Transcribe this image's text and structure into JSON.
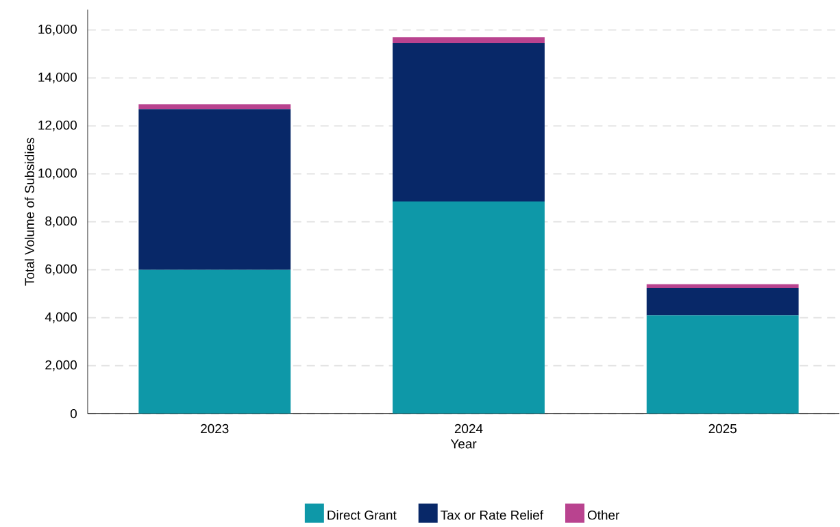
{
  "chart_data": {
    "type": "bar",
    "stacked": true,
    "xlabel": "Year",
    "ylabel": "Total Volume of Subsidies",
    "categories": [
      "2023",
      "2024",
      "2025"
    ],
    "series": [
      {
        "name": "Direct Grant",
        "color": "#0e98a8",
        "values": [
          6000,
          8850,
          4100
        ]
      },
      {
        "name": "Tax or Rate Relief",
        "color": "#082868",
        "values": [
          6700,
          6600,
          1150
        ]
      },
      {
        "name": "Other",
        "color": "#b9438f",
        "values": [
          200,
          250,
          150
        ]
      }
    ],
    "ylim": [
      0,
      16850
    ],
    "yticks": [
      0,
      {
        "value": 2000,
        "label": "2,000"
      },
      {
        "value": 4000,
        "label": "4,000"
      },
      {
        "value": 6000,
        "label": "6,000"
      },
      {
        "value": 8000,
        "label": "8,000"
      },
      {
        "value": 10000,
        "label": "10,000"
      },
      {
        "value": 12000,
        "label": "12,000"
      },
      {
        "value": 14000,
        "label": "14,000"
      },
      {
        "value": 16000,
        "label": "16,000"
      }
    ],
    "grid": "y",
    "legend": "bottom"
  }
}
